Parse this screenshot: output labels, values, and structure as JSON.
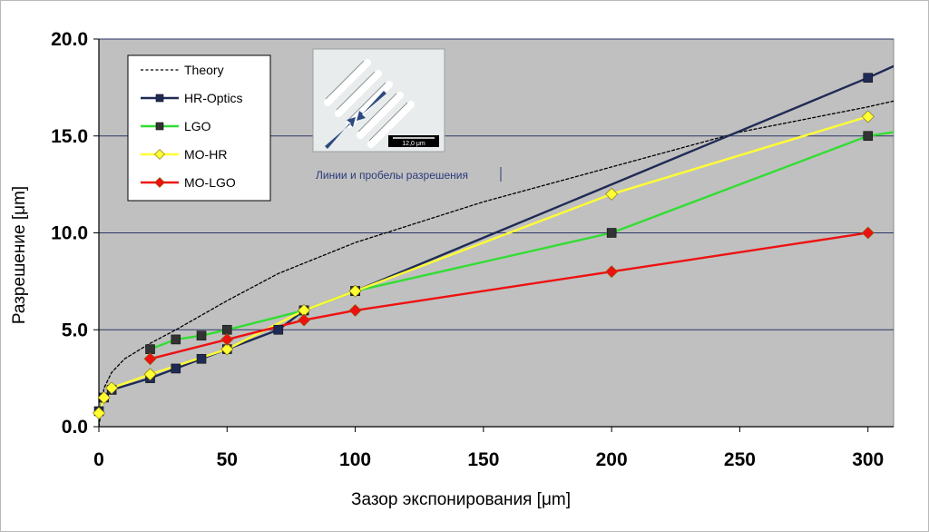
{
  "chart_data": {
    "type": "line",
    "xlabel": "Зазор экспонирования [μm]",
    "ylabel": "Разрешение [μm]",
    "xlim": [
      0,
      310
    ],
    "ylim": [
      0,
      20
    ],
    "xticks": [
      "0",
      "50",
      "100",
      "150",
      "200",
      "250",
      "300"
    ],
    "xtick_values": [
      0,
      50,
      100,
      150,
      200,
      250,
      300
    ],
    "yticks": [
      "0.0",
      "5.0",
      "10.0",
      "15.0",
      "20.0"
    ],
    "ytick_values": [
      0,
      5,
      10,
      15,
      20
    ],
    "grid": "horizontal",
    "legend_position": "top-left",
    "background": "#c0c0c0",
    "annotation": "Линии и пробелы разрешения",
    "inset": {
      "scale_label": "12,0 μm"
    },
    "series": [
      {
        "name": "Theory",
        "style": "dotted",
        "color": "#000000",
        "x": [
          0,
          2,
          5,
          10,
          20,
          30,
          50,
          70,
          100,
          150,
          200,
          250,
          300,
          310
        ],
        "y": [
          0,
          2.0,
          2.8,
          3.5,
          4.3,
          5.0,
          6.5,
          7.9,
          9.5,
          11.6,
          13.4,
          15.2,
          16.5,
          16.8
        ]
      },
      {
        "name": "HR-Optics",
        "style": "solid",
        "marker": "square",
        "color": "#1f2b55",
        "marker_color": "#1f2b55",
        "x": [
          0,
          2,
          5,
          20,
          30,
          40,
          50,
          70,
          80,
          100,
          300,
          310
        ],
        "y": [
          0.8,
          1.5,
          1.9,
          2.5,
          3.0,
          3.5,
          4.0,
          5.0,
          6.0,
          7.0,
          18.0,
          18.6
        ],
        "markers_x": [
          0,
          2,
          5,
          20,
          30,
          40,
          50,
          70,
          80,
          100,
          300
        ],
        "markers_y": [
          0.8,
          1.5,
          1.9,
          2.5,
          3.0,
          3.5,
          4.0,
          5.0,
          6.0,
          7.0,
          18.0
        ]
      },
      {
        "name": "LGO",
        "style": "solid",
        "marker": "square",
        "color": "#33dd33",
        "marker_color": "#333333",
        "x": [
          20,
          30,
          40,
          50,
          80,
          100,
          200,
          300,
          310
        ],
        "y": [
          4.0,
          4.5,
          4.7,
          5.0,
          6.0,
          7.0,
          10.0,
          15.0,
          15.2
        ],
        "markers_x": [
          20,
          30,
          40,
          50,
          80,
          100,
          200,
          300
        ],
        "markers_y": [
          4.0,
          4.5,
          4.7,
          5.0,
          6.0,
          7.0,
          10.0,
          15.0
        ]
      },
      {
        "name": "MO-HR",
        "style": "solid",
        "marker": "diamond",
        "color": "#ffff33",
        "marker_color": "#ffff33",
        "x": [
          0,
          2,
          5,
          20,
          50,
          80,
          100,
          200,
          300
        ],
        "y": [
          0.7,
          1.5,
          2.0,
          2.7,
          4.0,
          6.0,
          7.0,
          12.0,
          16.0
        ],
        "markers_x": [
          0,
          2,
          5,
          20,
          50,
          80,
          100,
          200,
          300
        ],
        "markers_y": [
          0.7,
          1.5,
          2.0,
          2.7,
          4.0,
          6.0,
          7.0,
          12.0,
          16.0
        ]
      },
      {
        "name": "MO-LGO",
        "style": "solid",
        "marker": "diamond",
        "color": "#ee1111",
        "marker_color": "#ee1111",
        "x": [
          20,
          50,
          80,
          100,
          200,
          300
        ],
        "y": [
          3.5,
          4.5,
          5.5,
          6.0,
          8.0,
          10.0
        ],
        "markers_x": [
          20,
          50,
          80,
          100,
          200,
          300
        ],
        "markers_y": [
          3.5,
          4.5,
          5.5,
          6.0,
          8.0,
          10.0
        ]
      }
    ]
  }
}
